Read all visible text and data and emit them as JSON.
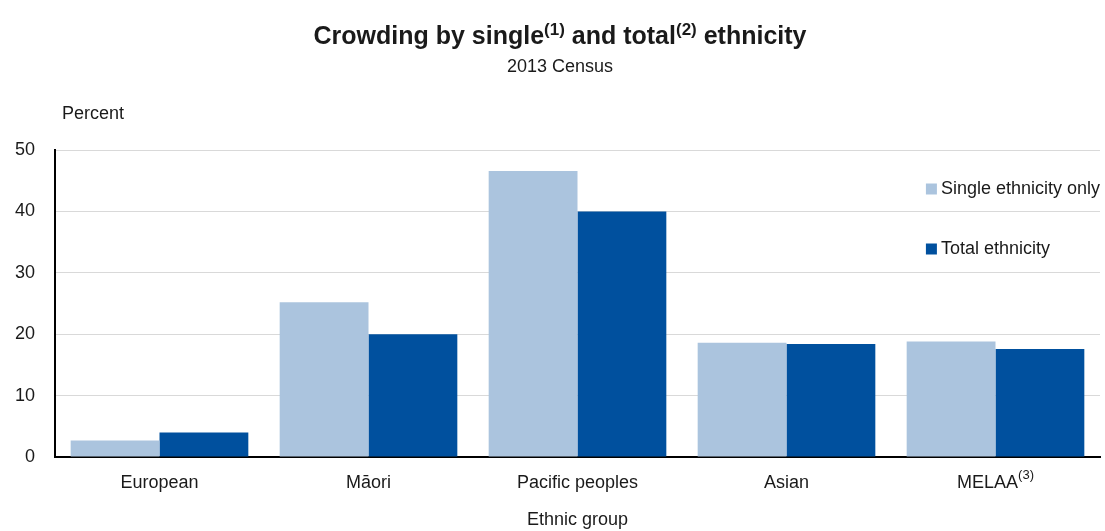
{
  "chart_data": {
    "type": "bar",
    "title": "Crowding by single$^{(1)}$ and total$^{(2)}$ ethnicity",
    "subtitle": "2013 Census",
    "xlabel": "Ethnic group",
    "ylabel": "Percent",
    "categories": [
      "European",
      "Māori",
      "Pacific peoples",
      "Asian",
      "MELAA$^{(3)}$"
    ],
    "series": [
      {
        "name": "Single ethnicity only",
        "color": "#abc4de",
        "values": [
          2.7,
          25.2,
          46.6,
          18.6,
          18.8
        ]
      },
      {
        "name": "Total ethnicity",
        "color": "#00509e",
        "values": [
          4.0,
          20.0,
          40.0,
          18.4,
          17.6
        ]
      }
    ],
    "ylim": [
      0,
      50
    ],
    "yticks": [
      0,
      10,
      20,
      30,
      40,
      50
    ],
    "grid": "y",
    "legend": "top right"
  }
}
